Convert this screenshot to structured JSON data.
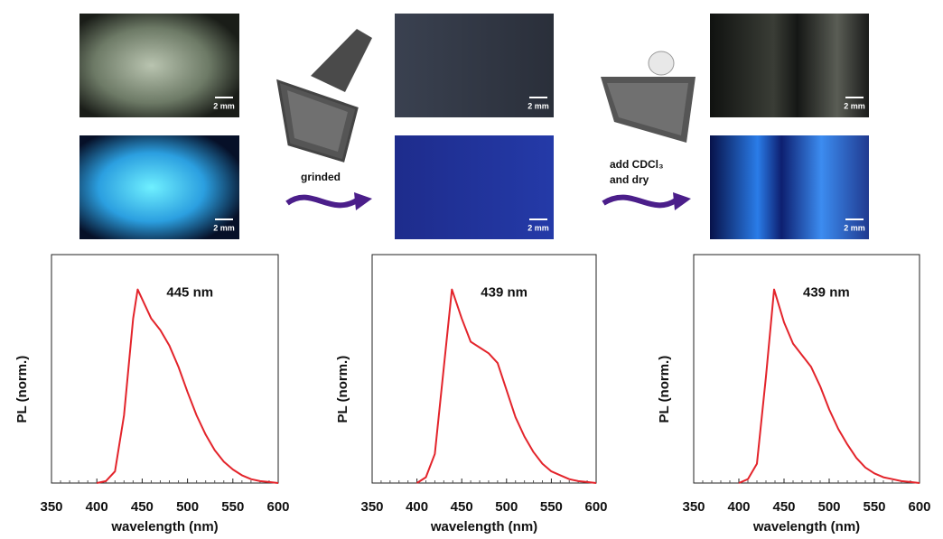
{
  "figure": {
    "scale_bars": [
      "2 mm",
      "2 mm",
      "2 mm",
      "2 mm",
      "2 mm",
      "2 mm"
    ],
    "step_labels": [
      [
        "grinded"
      ],
      [
        "add CDCl₃",
        "and dry"
      ]
    ]
  },
  "chart_data": [
    {
      "type": "line",
      "annotation": "445 nm",
      "xlabel": "wavelength (nm)",
      "ylabel": "PL (norm.)",
      "color": "#e3242b",
      "xlim": [
        350,
        600
      ],
      "xticks": [
        350,
        400,
        450,
        500,
        550,
        600
      ],
      "xminorticks": [
        360,
        370,
        380,
        390,
        410,
        420,
        430,
        440,
        460,
        470,
        480,
        490,
        510,
        520,
        530,
        540,
        560,
        570,
        580,
        590
      ],
      "ylim": [
        0,
        1.18
      ],
      "x": [
        400,
        410,
        420,
        430,
        440,
        445,
        450,
        460,
        470,
        480,
        490,
        500,
        510,
        520,
        530,
        540,
        550,
        560,
        570,
        580,
        590,
        600
      ],
      "values": [
        0,
        0.01,
        0.06,
        0.35,
        0.85,
        1.0,
        0.95,
        0.85,
        0.79,
        0.71,
        0.6,
        0.47,
        0.35,
        0.25,
        0.17,
        0.11,
        0.07,
        0.04,
        0.02,
        0.01,
        0.005,
        0
      ]
    },
    {
      "type": "line",
      "annotation": "439 nm",
      "xlabel": "wavelength (nm)",
      "ylabel": "PL (norm.)",
      "color": "#e3242b",
      "xlim": [
        350,
        600
      ],
      "xticks": [
        350,
        400,
        450,
        500,
        550,
        600
      ],
      "xminorticks": [
        360,
        370,
        380,
        390,
        410,
        420,
        430,
        440,
        460,
        470,
        480,
        490,
        510,
        520,
        530,
        540,
        560,
        570,
        580,
        590
      ],
      "ylim": [
        0,
        1.18
      ],
      "x": [
        400,
        410,
        420,
        430,
        439,
        450,
        460,
        470,
        480,
        490,
        500,
        510,
        520,
        530,
        540,
        550,
        560,
        570,
        580,
        590,
        600
      ],
      "values": [
        0,
        0.03,
        0.15,
        0.6,
        1.0,
        0.85,
        0.73,
        0.7,
        0.67,
        0.62,
        0.48,
        0.34,
        0.24,
        0.16,
        0.1,
        0.06,
        0.04,
        0.02,
        0.01,
        0.005,
        0
      ]
    },
    {
      "type": "line",
      "annotation": "439 nm",
      "xlabel": "wavelength (nm)",
      "ylabel": "PL (norm.)",
      "color": "#e3242b",
      "xlim": [
        350,
        600
      ],
      "xticks": [
        350,
        400,
        450,
        500,
        550,
        600
      ],
      "xminorticks": [
        360,
        370,
        380,
        390,
        410,
        420,
        430,
        440,
        460,
        470,
        480,
        490,
        510,
        520,
        530,
        540,
        560,
        570,
        580,
        590
      ],
      "ylim": [
        0,
        1.18
      ],
      "x": [
        400,
        410,
        420,
        430,
        439,
        450,
        460,
        470,
        480,
        490,
        500,
        510,
        520,
        530,
        540,
        550,
        560,
        570,
        580,
        590,
        600
      ],
      "values": [
        0,
        0.02,
        0.1,
        0.55,
        1.0,
        0.83,
        0.72,
        0.66,
        0.6,
        0.5,
        0.38,
        0.28,
        0.2,
        0.13,
        0.08,
        0.05,
        0.03,
        0.02,
        0.01,
        0.005,
        0
      ]
    }
  ]
}
